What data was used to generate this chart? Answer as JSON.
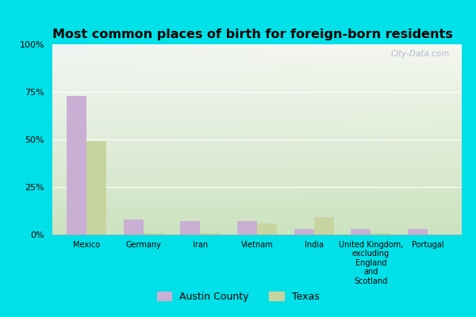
{
  "title": "Most common places of birth for foreign-born residents",
  "categories": [
    "Mexico",
    "Germany",
    "Iran",
    "Vietnam",
    "India",
    "United Kingdom,\nexcluding\nEngland\nand\nScotland",
    "Portugal"
  ],
  "austin_county": [
    73,
    8,
    7,
    7,
    3,
    3,
    3
  ],
  "texas": [
    49,
    1,
    1,
    6,
    9,
    1,
    0
  ],
  "austin_color": "#c9afd4",
  "texas_color": "#c8d4a0",
  "yticks": [
    0,
    25,
    50,
    75,
    100
  ],
  "ylim": [
    0,
    100
  ],
  "bar_width": 0.35,
  "legend_labels": [
    "Austin County",
    "Texas"
  ],
  "watermark": "City-Data.com",
  "outer_bg": "#00e0e8",
  "plot_bg_bottom": "#cce4c0",
  "plot_bg_top": "#f4f8f0",
  "plot_bg_topleft": "#e8eef4"
}
